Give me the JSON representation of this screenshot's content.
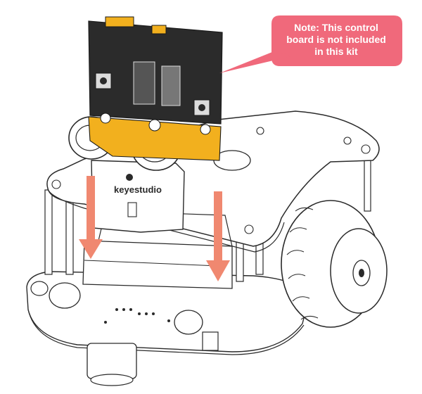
{
  "callout": {
    "lines": [
      "Note: This control",
      "board is not included",
      "in this kit"
    ],
    "bg_color": "#f0697b"
  },
  "brand": {
    "logo_text": "keyestudio"
  },
  "colors": {
    "arrow": "#f08870",
    "board": "#2b2b2b",
    "gold_stripe": "#f2b01e",
    "line": "#2a2a2a",
    "acrylic": "#ffffff"
  }
}
